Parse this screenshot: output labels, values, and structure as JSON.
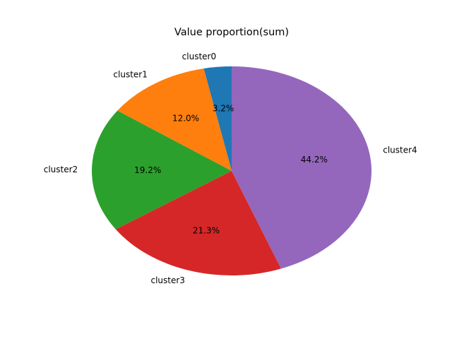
{
  "chart_data": {
    "type": "pie",
    "title": "Value proportion(sum)",
    "labels": [
      "cluster0",
      "cluster1",
      "cluster2",
      "cluster3",
      "cluster4"
    ],
    "values": [
      3.2,
      12.0,
      19.2,
      21.3,
      44.2
    ],
    "value_labels": [
      "3.2%",
      "12.0%",
      "19.2%",
      "21.3%",
      "44.2%"
    ],
    "colors": [
      "#1f77b4",
      "#ff7f0e",
      "#2ca02c",
      "#d62728",
      "#9467bd"
    ],
    "start_angle_deg": 90,
    "direction": "counterclockwise",
    "legend": "none"
  }
}
